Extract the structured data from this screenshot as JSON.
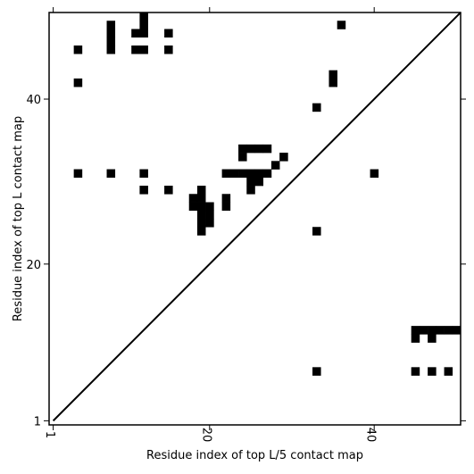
{
  "chart_data": {
    "type": "heatmap",
    "title": "",
    "xlabel": "Residue index of top L/5 contact map",
    "ylabel": "Residue index of top L contact map",
    "xlim": [
      0.5,
      50.5
    ],
    "ylim": [
      0.5,
      50.5
    ],
    "xticks": [
      1,
      20,
      40
    ],
    "yticks": [
      1,
      20,
      40
    ],
    "xtick_labels": [
      "1",
      "20",
      "40"
    ],
    "ytick_labels": [
      "1",
      "20",
      "40"
    ],
    "diagonal": true,
    "cell_color": "#000000",
    "upper_contacts": [
      [
        8,
        49
      ],
      [
        12,
        50
      ],
      [
        12,
        49
      ],
      [
        12,
        48
      ],
      [
        8,
        48
      ],
      [
        8,
        47
      ],
      [
        11,
        48
      ],
      [
        15,
        48
      ],
      [
        36,
        49
      ],
      [
        4,
        46
      ],
      [
        8,
        46
      ],
      [
        11,
        46
      ],
      [
        12,
        46
      ],
      [
        15,
        46
      ],
      [
        4,
        42
      ],
      [
        35,
        43
      ],
      [
        35,
        42
      ],
      [
        33,
        39
      ],
      [
        24,
        34
      ],
      [
        25,
        34
      ],
      [
        26,
        34
      ],
      [
        27,
        34
      ],
      [
        24,
        33
      ],
      [
        29,
        33
      ],
      [
        28,
        32
      ],
      [
        22,
        31
      ],
      [
        23,
        31
      ],
      [
        24,
        31
      ],
      [
        25,
        31
      ],
      [
        26,
        31
      ],
      [
        27,
        31
      ],
      [
        25,
        30
      ],
      [
        26,
        30
      ],
      [
        25,
        29
      ],
      [
        4,
        31
      ],
      [
        8,
        31
      ],
      [
        12,
        31
      ],
      [
        40,
        31
      ],
      [
        12,
        29
      ],
      [
        15,
        29
      ],
      [
        19,
        29
      ],
      [
        18,
        28
      ],
      [
        19,
        28
      ],
      [
        22,
        28
      ],
      [
        18,
        27
      ],
      [
        19,
        27
      ],
      [
        20,
        27
      ],
      [
        22,
        27
      ],
      [
        19,
        26
      ],
      [
        20,
        26
      ],
      [
        19,
        25
      ],
      [
        20,
        25
      ],
      [
        19,
        24
      ],
      [
        33,
        24
      ]
    ],
    "lower_contacts": [
      [
        45,
        12
      ],
      [
        46,
        12
      ],
      [
        47,
        12
      ],
      [
        48,
        12
      ],
      [
        49,
        12
      ],
      [
        50,
        12
      ],
      [
        45,
        11
      ],
      [
        47,
        11
      ],
      [
        33,
        7
      ],
      [
        45,
        7
      ],
      [
        47,
        7
      ],
      [
        49,
        7
      ]
    ]
  }
}
